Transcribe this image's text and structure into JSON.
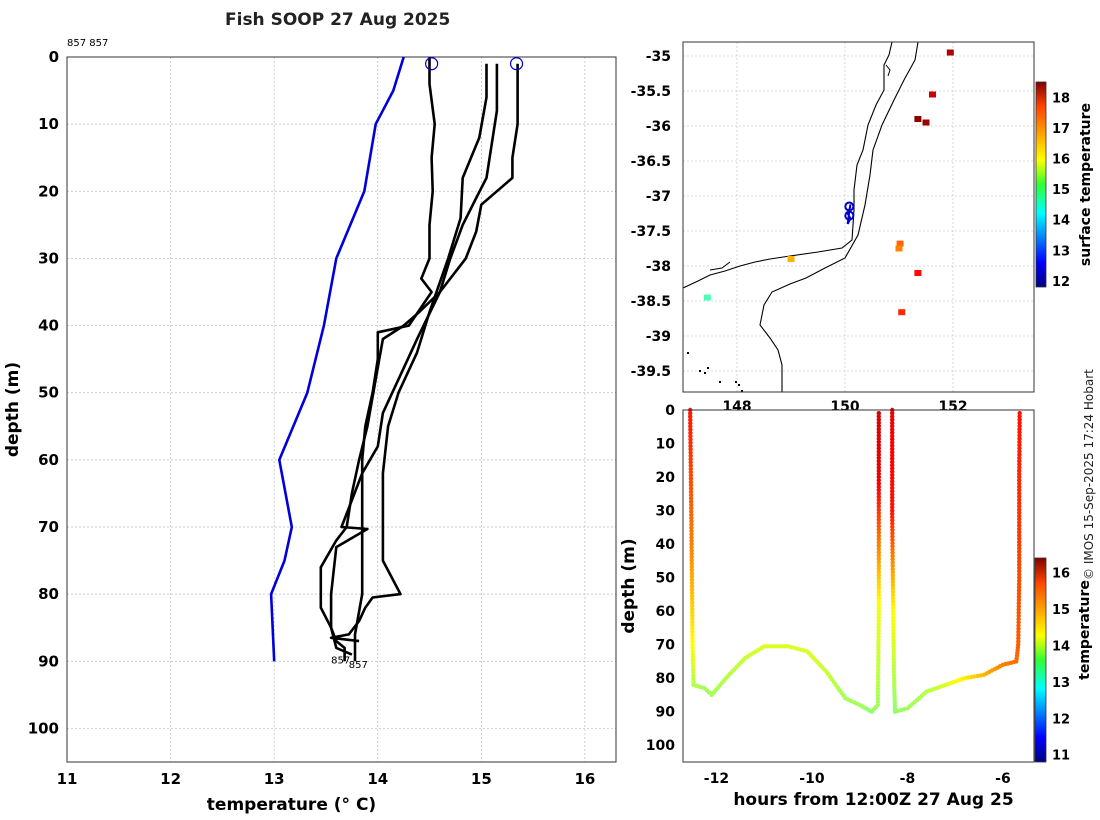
{
  "title": "Fish SOOP 27 Aug 2025",
  "credit": "© IMOS 15-Sep-2025 17:24 Hobart",
  "colors": {
    "climatology": "#0000dd",
    "profile": "#000000",
    "marker": "#0000cc",
    "grid": "#bbbbbb"
  },
  "chart_data": [
    {
      "type": "line",
      "name": "profile",
      "title": "Fish SOOP 27 Aug 2025",
      "xlabel": "temperature (° C)",
      "ylabel": "depth (m)",
      "xlim": [
        11,
        16.3
      ],
      "ylim": [
        0,
        105
      ],
      "y_reversed": true,
      "grid": true,
      "xticks": [
        11,
        12,
        13,
        14,
        15,
        16
      ],
      "yticks": [
        0,
        10,
        20,
        30,
        40,
        50,
        60,
        70,
        80,
        90,
        100
      ],
      "annotations": {
        "top_left": "857 857",
        "bottom_a": "857",
        "bottom_b": "857"
      },
      "start_markers": [
        {
          "temp": 14.52,
          "depth": 1
        },
        {
          "temp": 15.34,
          "depth": 1
        }
      ],
      "series": [
        {
          "name": "climatology",
          "points": [
            [
              14.25,
              0
            ],
            [
              14.15,
              5
            ],
            [
              13.98,
              10
            ],
            [
              13.87,
              20
            ],
            [
              13.6,
              30
            ],
            [
              13.48,
              40
            ],
            [
              13.32,
              50
            ],
            [
              13.05,
              60
            ],
            [
              13.17,
              70
            ],
            [
              13.1,
              75
            ],
            [
              12.97,
              80
            ],
            [
              13.0,
              90
            ]
          ]
        },
        {
          "name": "profile 1",
          "points": [
            [
              14.5,
              0
            ],
            [
              14.5,
              4
            ],
            [
              14.55,
              10
            ],
            [
              14.52,
              15
            ],
            [
              14.53,
              20
            ],
            [
              14.5,
              25
            ],
            [
              14.5,
              30
            ],
            [
              14.42,
              33
            ],
            [
              14.52,
              35
            ],
            [
              14.3,
              40
            ],
            [
              14.0,
              41
            ],
            [
              14.0,
              45
            ],
            [
              13.95,
              50
            ],
            [
              13.88,
              55
            ],
            [
              13.85,
              60
            ],
            [
              13.85,
              70
            ],
            [
              13.85,
              80
            ],
            [
              13.78,
              86
            ],
            [
              13.78,
              90
            ]
          ]
        },
        {
          "name": "profile 2",
          "points": [
            [
              15.05,
              1
            ],
            [
              15.05,
              6
            ],
            [
              14.98,
              12
            ],
            [
              14.82,
              18
            ],
            [
              14.8,
              24
            ],
            [
              14.68,
              30
            ],
            [
              14.5,
              38
            ],
            [
              14.38,
              44
            ],
            [
              14.2,
              50
            ],
            [
              14.1,
              55
            ],
            [
              14.05,
              62
            ],
            [
              14.05,
              70
            ],
            [
              14.05,
              75
            ],
            [
              14.22,
              80
            ],
            [
              13.95,
              80.5
            ],
            [
              13.88,
              82
            ],
            [
              13.82,
              84
            ],
            [
              13.72,
              86
            ],
            [
              13.55,
              86.5
            ],
            [
              13.82,
              87
            ]
          ]
        },
        {
          "name": "profile 3",
          "points": [
            [
              15.15,
              1
            ],
            [
              15.15,
              8
            ],
            [
              15.1,
              13
            ],
            [
              15.05,
              18
            ],
            [
              14.95,
              21
            ],
            [
              14.82,
              25
            ],
            [
              14.7,
              30
            ],
            [
              14.6,
              35
            ],
            [
              14.38,
              42
            ],
            [
              14.2,
              48
            ],
            [
              14.05,
              53
            ],
            [
              14.0,
              58
            ],
            [
              13.85,
              62
            ],
            [
              13.75,
              66
            ],
            [
              13.65,
              70
            ],
            [
              13.9,
              70.3
            ],
            [
              13.6,
              73
            ],
            [
              13.55,
              80
            ],
            [
              13.55,
              85
            ],
            [
              13.6,
              88
            ],
            [
              13.75,
              89
            ]
          ]
        },
        {
          "name": "profile 4",
          "points": [
            [
              15.35,
              1
            ],
            [
              15.35,
              10
            ],
            [
              15.3,
              15
            ],
            [
              15.3,
              18
            ],
            [
              15.0,
              22
            ],
            [
              14.95,
              26
            ],
            [
              14.85,
              30
            ],
            [
              14.6,
              35
            ],
            [
              14.4,
              38
            ],
            [
              14.25,
              40
            ],
            [
              14.05,
              42
            ],
            [
              13.98,
              48
            ],
            [
              13.9,
              55
            ],
            [
              13.82,
              60
            ],
            [
              13.75,
              65
            ],
            [
              13.7,
              70
            ],
            [
              13.6,
              72
            ],
            [
              13.45,
              76
            ],
            [
              13.45,
              82
            ],
            [
              13.55,
              85
            ],
            [
              13.6,
              87
            ],
            [
              13.68,
              88
            ],
            [
              13.68,
              90
            ]
          ]
        }
      ]
    },
    {
      "type": "map",
      "name": "track-map",
      "lon_range": [
        147.0,
        153.5
      ],
      "lat_range": [
        -39.8,
        -34.8
      ],
      "xticks": [
        148,
        150,
        152
      ],
      "xtick_labels": [
        "148",
        "150",
        "152"
      ],
      "yticks": [
        -35,
        -35.5,
        -36,
        -36.5,
        -37,
        -37.5,
        -38,
        -38.5,
        -39,
        -39.5
      ],
      "colorbar": {
        "label": "surface temperature",
        "min": 11.8,
        "max": 18.5,
        "ticks": [
          12,
          13,
          14,
          15,
          16,
          17,
          18
        ]
      },
      "track": [
        [
          150.1,
          -37.15
        ],
        [
          150.05,
          -37.25
        ],
        [
          150.1,
          -37.32
        ],
        [
          150.05,
          -37.4
        ],
        [
          150.08,
          -37.22
        ],
        [
          150.1,
          -37.12
        ]
      ],
      "sst_patches": [
        {
          "lon": 151.02,
          "lat": -37.68,
          "temp": 17.0
        },
        {
          "lon": 151.0,
          "lat": -37.75,
          "temp": 16.8
        },
        {
          "lon": 149.0,
          "lat": -37.9,
          "temp": 16.5
        },
        {
          "lon": 147.45,
          "lat": -38.45,
          "temp": 14.8
        },
        {
          "lon": 151.5,
          "lat": -35.95,
          "temp": 18.3
        },
        {
          "lon": 151.35,
          "lat": -35.9,
          "temp": 18.4
        },
        {
          "lon": 151.95,
          "lat": -34.95,
          "temp": 18.2
        },
        {
          "lon": 151.05,
          "lat": -38.66,
          "temp": 17.4
        },
        {
          "lon": 151.35,
          "lat": -38.1,
          "temp": 17.6
        },
        {
          "lon": 151.62,
          "lat": -35.55,
          "temp": 18.0
        }
      ]
    },
    {
      "type": "scatter",
      "name": "depth-time",
      "xlabel": "hours from 12:00Z 27 Aug 25",
      "ylabel": "depth (m)",
      "xlim": [
        -12.7,
        -5.35
      ],
      "ylim": [
        0,
        105
      ],
      "y_reversed": true,
      "xticks": [
        -12,
        -10,
        -8,
        -6
      ],
      "yticks": [
        0,
        10,
        20,
        30,
        40,
        50,
        60,
        70,
        80,
        90,
        100
      ],
      "colorbar": {
        "label": "temperature",
        "min": 10.8,
        "max": 16.4,
        "ticks": [
          11,
          12,
          13,
          14,
          15,
          16
        ]
      },
      "segments": [
        {
          "points": [
            [
              -12.55,
              0,
              15.6
            ],
            [
              -12.52,
              40,
              15.0
            ],
            [
              -12.5,
              70,
              14.3
            ],
            [
              -12.48,
              82,
              13.9
            ],
            [
              -12.25,
              83,
              13.8
            ],
            [
              -12.1,
              85,
              13.8
            ],
            [
              -11.8,
              80,
              13.9
            ],
            [
              -11.4,
              74,
              14.0
            ],
            [
              -11.0,
              70.5,
              14.1
            ],
            [
              -10.5,
              70.5,
              14.1
            ],
            [
              -10.1,
              72,
              14.1
            ],
            [
              -9.7,
              78,
              14.0
            ],
            [
              -9.3,
              86,
              13.8
            ],
            [
              -9.0,
              88,
              13.8
            ],
            [
              -8.75,
              90,
              13.7
            ],
            [
              -8.62,
              88,
              13.8
            ],
            [
              -8.6,
              60,
              14.2
            ],
            [
              -8.6,
              20,
              15.8
            ],
            [
              -8.6,
              0,
              15.9
            ]
          ]
        },
        {
          "points": [
            [
              -8.32,
              0,
              15.8
            ],
            [
              -8.32,
              30,
              15.6
            ],
            [
              -8.3,
              60,
              14.3
            ],
            [
              -8.28,
              80,
              13.9
            ],
            [
              -8.26,
              90,
              13.7
            ],
            [
              -8.0,
              89,
              13.8
            ],
            [
              -7.6,
              84,
              13.9
            ],
            [
              -7.2,
              82,
              14.1
            ],
            [
              -6.8,
              80,
              14.4
            ],
            [
              -6.4,
              79,
              14.7
            ],
            [
              -6.0,
              76,
              15.0
            ],
            [
              -5.72,
              75,
              15.1
            ],
            [
              -5.68,
              70,
              15.2
            ],
            [
              -5.66,
              50,
              15.3
            ],
            [
              -5.66,
              20,
              15.5
            ],
            [
              -5.65,
              0,
              15.6
            ]
          ]
        }
      ]
    }
  ]
}
